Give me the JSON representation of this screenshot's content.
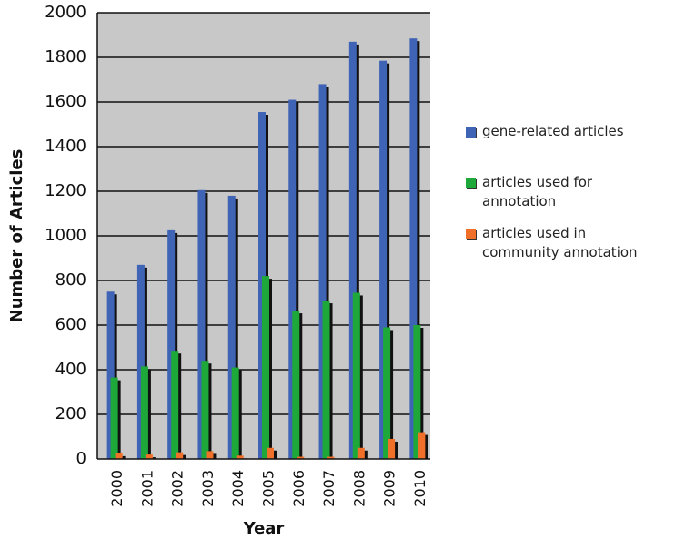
{
  "chart_data": {
    "type": "bar",
    "title": "",
    "xlabel": "Year",
    "ylabel": "Number of Articles",
    "categories": [
      "2000",
      "2001",
      "2002",
      "2003",
      "2004",
      "2005",
      "2006",
      "2007",
      "2008",
      "2009",
      "2010"
    ],
    "series": [
      {
        "name": "gene-related articles",
        "color": "#3f63b5",
        "values": [
          750,
          870,
          1025,
          1205,
          1180,
          1555,
          1610,
          1680,
          1870,
          1785,
          1885
        ]
      },
      {
        "name": "articles used for\nannotation",
        "color": "#1fa83a",
        "values": [
          365,
          415,
          485,
          440,
          410,
          820,
          665,
          710,
          745,
          590,
          600
        ]
      },
      {
        "name": "articles used in\ncommunity annotation",
        "color": "#f0702a",
        "values": [
          25,
          20,
          30,
          35,
          15,
          50,
          10,
          10,
          50,
          90,
          120
        ]
      }
    ],
    "yticks": [
      "0",
      "200",
      "400",
      "600",
      "800",
      "1000",
      "1200",
      "1400",
      "1600",
      "1800",
      "2000"
    ],
    "ylim": [
      0,
      2000
    ],
    "grid": true,
    "plot_background": "#c8c8c8",
    "legend_position": "right"
  }
}
